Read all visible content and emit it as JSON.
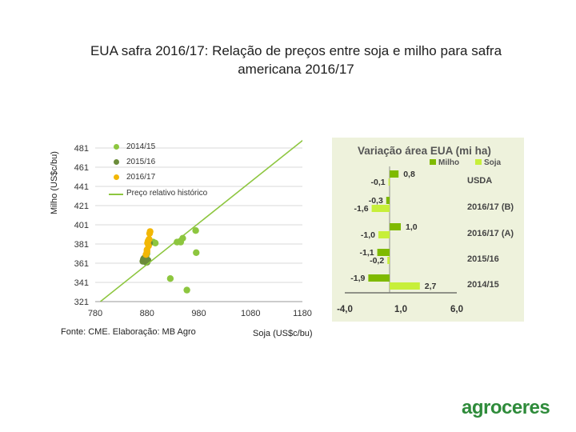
{
  "title_line1": "EUA safra 2016/17: Relação de preços entre soja e milho para safra",
  "title_line2": "americana 2016/17",
  "source": "Fonte: CME. Elaboração: MB Agro",
  "logo": "agroceres",
  "chart_data": [
    {
      "type": "scatter",
      "xlabel": "Soja (US$c/bu)",
      "ylabel": "Milho (US$c/bu)",
      "xlim": [
        780,
        1180
      ],
      "ylim": [
        321,
        481
      ],
      "x_ticks": [
        "780",
        "880",
        "980",
        "1080",
        "1180"
      ],
      "y_ticks": [
        "481",
        "461",
        "441",
        "421",
        "401",
        "381",
        "361",
        "341",
        "321"
      ],
      "grid": "horizontal",
      "legend_position": "top-left",
      "series": [
        {
          "name": "2014/15",
          "color": "#8dc63f",
          "points": [
            [
              880,
              371
            ],
            [
              892,
              383
            ],
            [
              896,
              382
            ],
            [
              925,
              345
            ],
            [
              938,
              383
            ],
            [
              945,
              383
            ],
            [
              949,
              387
            ],
            [
              957,
              333
            ],
            [
              974,
              395
            ],
            [
              975,
              372
            ]
          ]
        },
        {
          "name": "2015/16",
          "color": "#6b8c3a",
          "points": [
            [
              872,
              363
            ],
            [
              873,
              365
            ],
            [
              874,
              366
            ],
            [
              876,
              364
            ],
            [
              878,
              362
            ],
            [
              880,
              363
            ],
            [
              882,
              364
            ],
            [
              878,
              368
            ],
            [
              880,
              362
            ],
            [
              885,
              382
            ]
          ]
        },
        {
          "name": "2016/17",
          "color": "#f2b705",
          "points": [
            [
              878,
              370
            ],
            [
              880,
              375
            ],
            [
              881,
              382
            ],
            [
              882,
              384
            ],
            [
              884,
              386
            ],
            [
              885,
              392
            ],
            [
              886,
              394
            ],
            [
              883,
              379
            ],
            [
              880,
              373
            ]
          ]
        },
        {
          "name": "Preço relativo histórico",
          "type": "line",
          "color": "#8dc63f",
          "points": [
            [
              790,
              321
            ],
            [
              1190,
              493
            ]
          ]
        }
      ]
    },
    {
      "type": "bar",
      "orientation": "horizontal",
      "title": "Variação área EUA (mi ha)",
      "categories": [
        "USDA",
        "2016/17 (B)",
        "2016/17 (A)",
        "2015/16",
        "2014/15"
      ],
      "xlim": [
        -4.0,
        6.0
      ],
      "x_ticks": [
        "-4,0",
        "1,0",
        "6,0"
      ],
      "legend_position": "top",
      "series": [
        {
          "name": "Milho",
          "color": "#7fba00",
          "values": [
            0.8,
            -0.3,
            1.0,
            -1.1,
            -1.9
          ],
          "labels": [
            "0,8",
            "-0,3",
            "1,0",
            "-1,1",
            "-1,9"
          ]
        },
        {
          "name": "Soja",
          "color": "#c7ef3a",
          "values": [
            -0.1,
            -1.6,
            -1.0,
            -0.2,
            2.7
          ],
          "labels": [
            "-0,1",
            "-1,6",
            "-1,0",
            "-0,2",
            "2,7"
          ]
        }
      ]
    }
  ]
}
